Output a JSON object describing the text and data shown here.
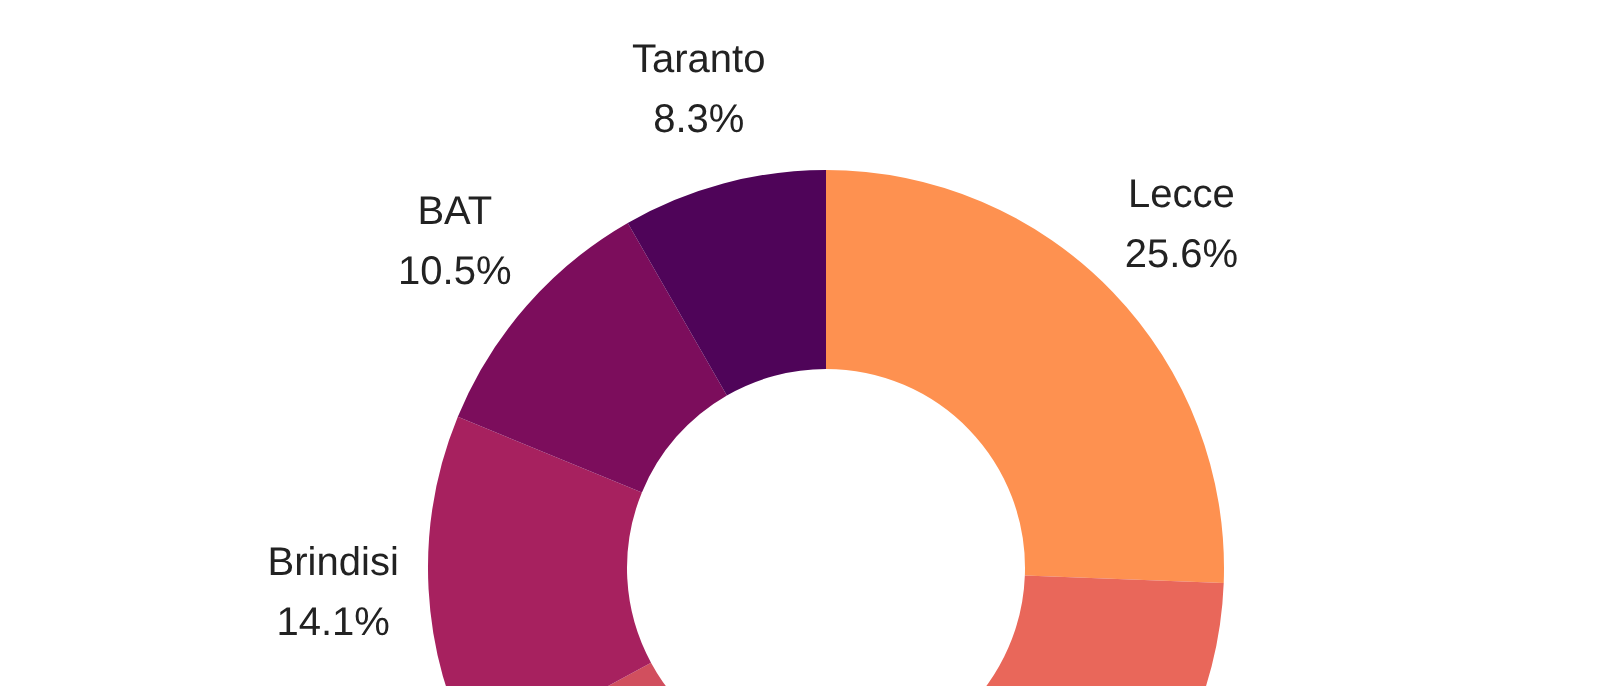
{
  "chart_data": {
    "type": "donut",
    "categories": [
      "Lecce",
      null,
      null,
      "Brindisi",
      "BAT",
      "Taranto"
    ],
    "values": [
      25.6,
      27.0,
      14.5,
      14.1,
      10.5,
      8.3
    ],
    "value_labels": [
      "25.6%",
      null,
      null,
      "14.1%",
      "10.5%",
      "8.3%"
    ],
    "colors": [
      "#fe9150",
      "#e9675a",
      "#d14f5e",
      "#a7215f",
      "#7c0d5c",
      "#4f0459"
    ],
    "legend": false
  }
}
